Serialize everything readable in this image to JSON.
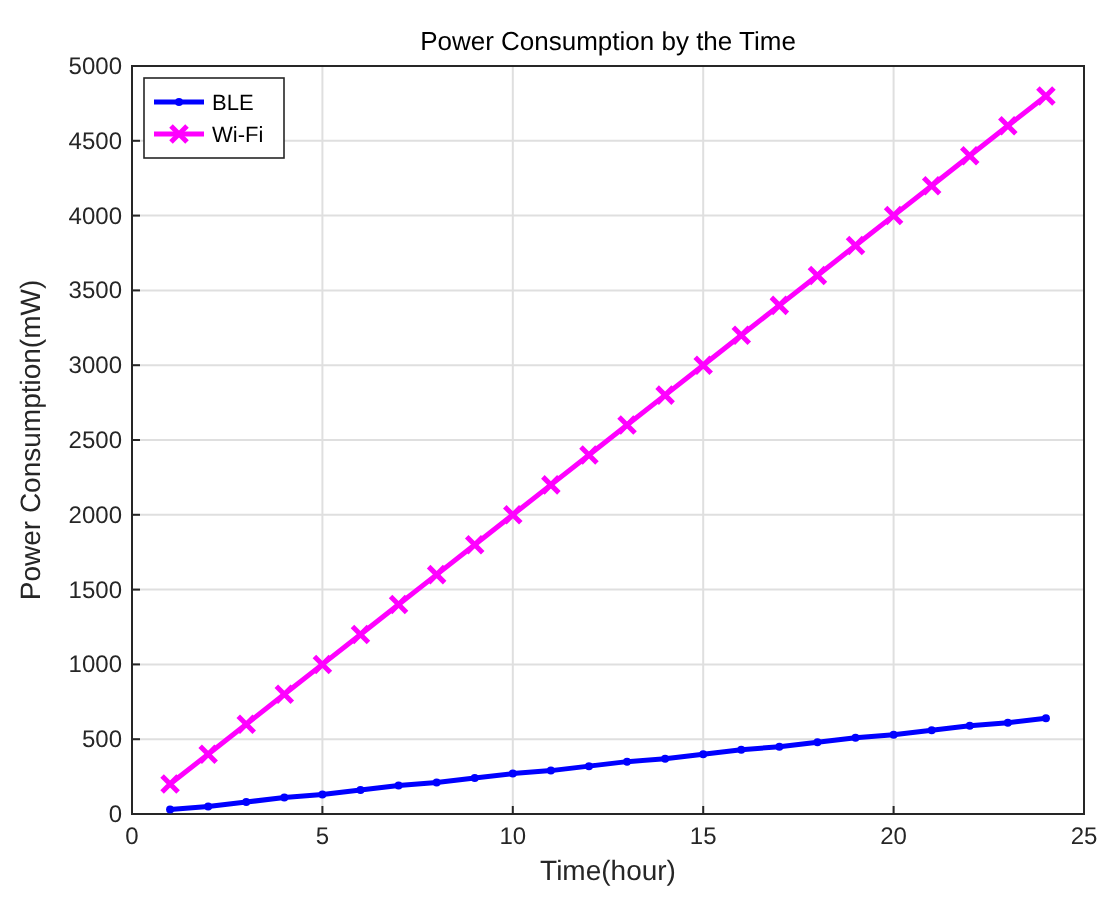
{
  "chart_data": {
    "type": "line",
    "title": "Power Consumption by the Time",
    "xlabel": "Time(hour)",
    "ylabel": "Power Consumption(mW)",
    "x": [
      1,
      2,
      3,
      4,
      5,
      6,
      7,
      8,
      9,
      10,
      11,
      12,
      13,
      14,
      15,
      16,
      17,
      18,
      19,
      20,
      21,
      22,
      23,
      24
    ],
    "series": [
      {
        "name": "BLE",
        "color": "#0000ff",
        "marker": "circle",
        "values": [
          30,
          50,
          80,
          110,
          130,
          160,
          190,
          210,
          240,
          270,
          290,
          320,
          350,
          370,
          400,
          430,
          450,
          480,
          510,
          530,
          560,
          590,
          610,
          640
        ]
      },
      {
        "name": "Wi-Fi",
        "color": "#ff00ff",
        "marker": "cross",
        "values": [
          200,
          400,
          600,
          800,
          1000,
          1200,
          1400,
          1600,
          1800,
          2000,
          2200,
          2400,
          2600,
          2800,
          3000,
          3200,
          3400,
          3600,
          3800,
          4000,
          4200,
          4400,
          4600,
          4800
        ]
      }
    ],
    "xlim": [
      0,
      25
    ],
    "xticks": [
      0,
      5,
      10,
      15,
      20,
      25
    ],
    "ylim": [
      0,
      5000
    ],
    "yticks": [
      0,
      500,
      1000,
      1500,
      2000,
      2500,
      3000,
      3500,
      4000,
      4500,
      5000
    ],
    "grid": true,
    "legend": "top left",
    "line_style": "solid"
  }
}
